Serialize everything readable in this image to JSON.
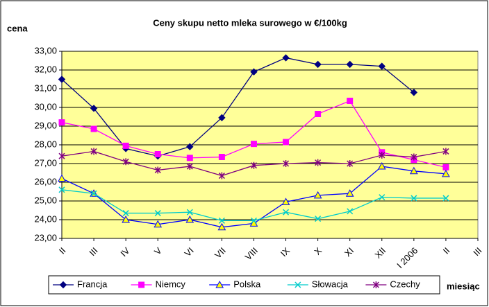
{
  "chart_data": {
    "type": "line",
    "title": "Ceny skupu netto mleka surowego  w €/100kg",
    "y_label": "cena",
    "x_label": "miesiąc",
    "categories": [
      "II",
      "III",
      "IV",
      "V",
      "VI",
      "VII",
      "VIII",
      "IX",
      "X",
      "XI",
      "XII",
      "I 2006",
      "II",
      "III"
    ],
    "series": [
      {
        "name": "Francja",
        "color": "#000080",
        "marker": "diamond",
        "values": [
          31.5,
          29.95,
          27.8,
          27.4,
          27.9,
          29.45,
          31.9,
          32.65,
          32.3,
          32.3,
          32.2,
          30.8,
          null,
          null
        ]
      },
      {
        "name": "Niemcy",
        "color": "#ff00ff",
        "marker": "square",
        "values": [
          29.2,
          28.85,
          27.95,
          27.5,
          27.3,
          27.35,
          28.05,
          28.15,
          29.65,
          30.35,
          27.6,
          27.2,
          26.8,
          null
        ]
      },
      {
        "name": "Polska",
        "color": "#0000ff",
        "marker": "triangle",
        "values": [
          26.2,
          25.4,
          24.0,
          23.75,
          24.0,
          23.6,
          23.8,
          24.95,
          25.3,
          25.4,
          26.85,
          26.6,
          26.45,
          null
        ]
      },
      {
        "name": "Słowacja",
        "color": "#00cccc",
        "marker": "x",
        "values": [
          25.6,
          25.4,
          24.35,
          24.35,
          24.4,
          23.95,
          23.95,
          24.4,
          24.05,
          24.45,
          25.2,
          25.15,
          25.15,
          null
        ]
      },
      {
        "name": "Czechy",
        "color": "#800080",
        "marker": "star",
        "values": [
          27.4,
          27.65,
          27.1,
          26.65,
          26.85,
          26.35,
          26.9,
          27.0,
          27.05,
          27.0,
          27.45,
          27.35,
          27.65,
          null
        ]
      }
    ],
    "ylim": [
      23,
      33
    ],
    "yticks": [
      {
        "value": 23,
        "label": "23,00"
      },
      {
        "value": 24,
        "label": "24,00"
      },
      {
        "value": 25,
        "label": "25,00"
      },
      {
        "value": 26,
        "label": "26,00"
      },
      {
        "value": 27,
        "label": "27,00"
      },
      {
        "value": 28,
        "label": "28,00"
      },
      {
        "value": 29,
        "label": "29,00"
      },
      {
        "value": 30,
        "label": "30,00"
      },
      {
        "value": 31,
        "label": "31,00"
      },
      {
        "value": 32,
        "label": "32,00"
      },
      {
        "value": 33,
        "label": "33,00"
      }
    ],
    "grid": true,
    "legend": "bottom"
  }
}
